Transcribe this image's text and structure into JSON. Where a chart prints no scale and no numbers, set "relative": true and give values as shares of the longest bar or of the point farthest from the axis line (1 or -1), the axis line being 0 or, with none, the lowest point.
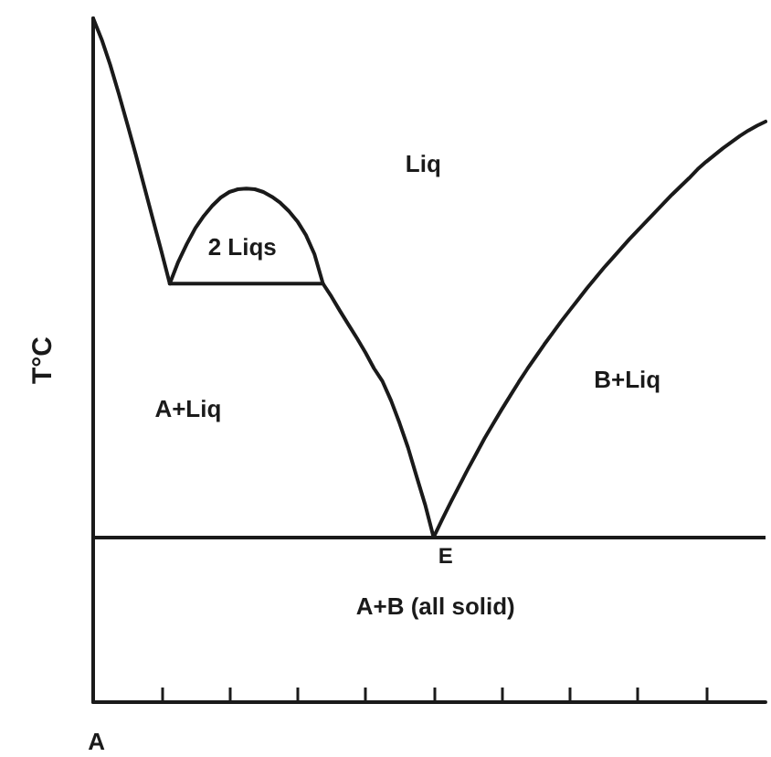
{
  "chart_data": {
    "type": "line",
    "ylabel": "T°C",
    "relative": true,
    "marker": "none",
    "line_style": "solid",
    "categories": [
      null,
      null,
      null,
      null,
      null,
      null,
      null,
      null,
      null,
      null,
      null,
      null,
      null,
      null,
      null,
      null,
      null,
      null,
      null,
      null,
      null,
      null,
      null,
      null,
      null,
      null,
      null,
      null,
      null,
      null,
      null,
      null,
      null,
      null,
      null,
      null,
      null,
      null,
      null,
      null,
      null,
      null,
      null,
      null,
      null,
      null,
      null,
      null,
      null,
      null,
      null,
      null,
      null,
      null,
      null,
      null,
      null,
      null,
      null,
      null,
      null,
      null,
      null,
      null,
      null,
      null,
      null,
      null,
      null,
      null,
      null,
      null,
      null,
      null,
      null,
      null,
      null,
      null,
      null,
      null
    ],
    "series": [
      {
        "color": "#1a1a1a",
        "values": [
          1,
          0.969,
          0.932,
          0.89,
          0.846,
          0.801,
          0.754,
          0.707,
          0.66,
          0.612,
          0.612,
          0.612,
          0.612,
          0.612,
          0.612,
          0.612,
          0.612,
          0.612,
          0.612,
          0.612,
          0.612,
          0.612,
          0.612,
          0.612,
          0.612,
          0.612,
          0.612,
          0.612,
          0.593,
          0.572,
          0.552,
          0.532,
          0.511,
          0.488,
          0.469,
          0.441,
          0.408,
          0.372,
          0.33,
          0.289,
          0.241,
          0.267,
          0.292,
          0.316,
          0.34,
          0.363,
          0.386,
          0.407,
          0.428,
          0.448,
          0.468,
          0.487,
          0.505,
          0.523,
          0.54,
          0.557,
          0.573,
          0.589,
          0.605,
          0.62,
          0.635,
          0.649,
          0.663,
          0.677,
          0.69,
          0.703,
          0.716,
          0.729,
          0.742,
          0.754,
          0.766,
          0.779,
          0.79,
          0.8,
          0.81,
          0.819,
          0.828,
          0.836,
          0.843,
          0.849
        ]
      },
      {
        "color": "#1a1a1a",
        "values": [
          null,
          null,
          null,
          null,
          null,
          null,
          null,
          null,
          null,
          0.612,
          0.644,
          0.67,
          0.693,
          0.711,
          0.726,
          0.738,
          0.746,
          0.75,
          0.751,
          0.75,
          0.746,
          0.739,
          0.73,
          0.718,
          0.703,
          0.683,
          0.655,
          0.612,
          null,
          null,
          null,
          null,
          null,
          null,
          null,
          null,
          null,
          null,
          null,
          null,
          null,
          null,
          null,
          null,
          null,
          null,
          null,
          null,
          null,
          null,
          null,
          null,
          null,
          null,
          null,
          null,
          null,
          null,
          null,
          null,
          null,
          null,
          null,
          null,
          null,
          null,
          null,
          null,
          null,
          null,
          null,
          null,
          null,
          null,
          null,
          null,
          null,
          null,
          null,
          null
        ]
      }
    ],
    "ref_lines": [
      {
        "axis": "y",
        "value": 0.241,
        "color": "#1a1a1a"
      }
    ],
    "annotations": [
      "Liq",
      "2 Liqs",
      "A+Liq",
      "B+Liq",
      "E",
      "A+B (all solid)",
      "A"
    ]
  }
}
